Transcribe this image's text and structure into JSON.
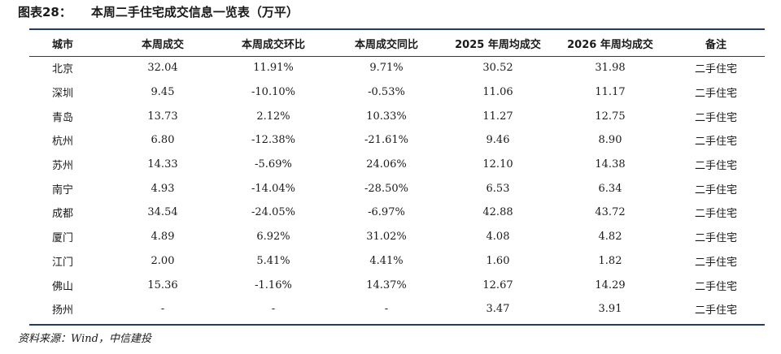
{
  "title": {
    "number": "图表28：",
    "text": "本周二手住宅成交信息一览表（万平）"
  },
  "table": {
    "headers": [
      "城市",
      "本周成交",
      "本周成交环比",
      "本周成交同比",
      "2025 年周均成交",
      "2026 年周均成交",
      "备注"
    ],
    "rows": [
      [
        "北京",
        "32.04",
        "11.91%",
        "9.71%",
        "30.52",
        "31.98",
        "二手住宅"
      ],
      [
        "深圳",
        "9.45",
        "-10.10%",
        "-0.53%",
        "11.06",
        "11.17",
        "二手住宅"
      ],
      [
        "青岛",
        "13.73",
        "2.12%",
        "10.33%",
        "11.27",
        "12.75",
        "二手住宅"
      ],
      [
        "杭州",
        "6.80",
        "-12.38%",
        "-21.61%",
        "9.46",
        "8.90",
        "二手住宅"
      ],
      [
        "苏州",
        "14.33",
        "-5.69%",
        "24.06%",
        "12.10",
        "14.38",
        "二手住宅"
      ],
      [
        "南宁",
        "4.93",
        "-14.04%",
        "-28.50%",
        "6.53",
        "6.34",
        "二手住宅"
      ],
      [
        "成都",
        "34.54",
        "-24.05%",
        "-6.97%",
        "42.88",
        "43.72",
        "二手住宅"
      ],
      [
        "厦门",
        "4.89",
        "6.92%",
        "31.02%",
        "4.08",
        "4.82",
        "二手住宅"
      ],
      [
        "江门",
        "2.00",
        "5.41%",
        "4.41%",
        "1.60",
        "1.82",
        "二手住宅"
      ],
      [
        "佛山",
        "15.36",
        "-1.16%",
        "14.37%",
        "12.67",
        "14.29",
        "二手住宅"
      ],
      [
        "扬州",
        "-",
        "-",
        "-",
        "3.47",
        "3.91",
        "二手住宅"
      ]
    ]
  },
  "source": "资料来源：Wind，中信建投",
  "colors": {
    "rule": "#1f3e6e"
  }
}
